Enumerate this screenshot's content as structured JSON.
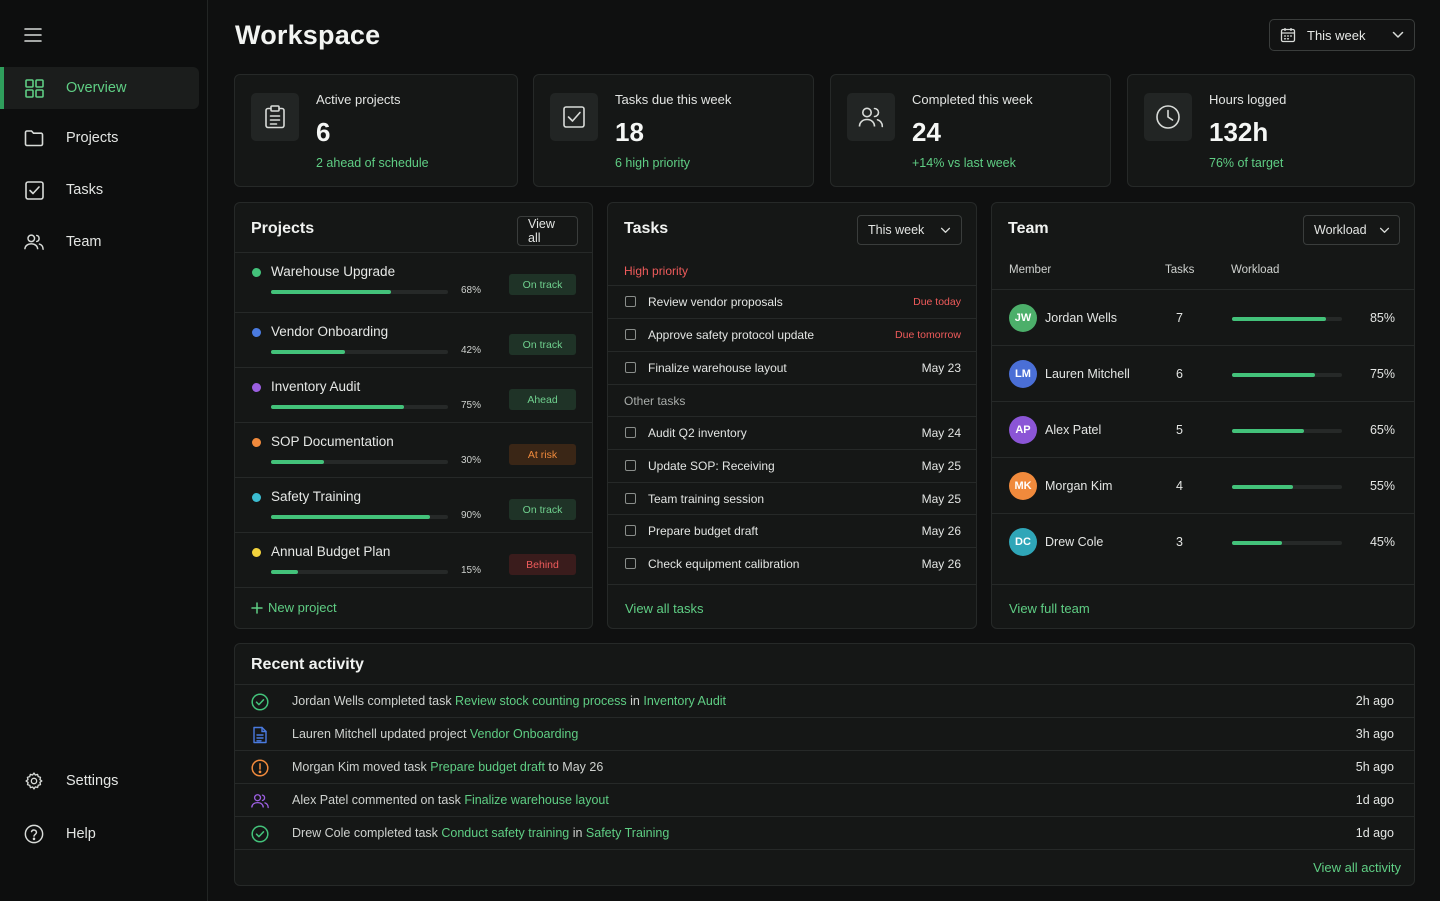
{
  "app": {
    "title": "Workspace"
  },
  "colors": {
    "accent": "#5fce84",
    "bar": "#43c27a",
    "danger": "#ef5b5b",
    "warning": "#f08a3c"
  },
  "sidebar": {
    "items": [
      {
        "label": "Overview",
        "icon": "grid-icon",
        "active": true
      },
      {
        "label": "Projects",
        "icon": "folder-icon"
      },
      {
        "label": "Tasks",
        "icon": "checkbox-icon"
      },
      {
        "label": "Team",
        "icon": "users-icon"
      }
    ],
    "bottom": [
      {
        "label": "Settings",
        "icon": "gear-icon"
      },
      {
        "label": "Help",
        "icon": "help-icon"
      }
    ]
  },
  "header": {
    "period": "This week"
  },
  "stats": [
    {
      "label": "Active projects",
      "value": "6",
      "sub": "2 ahead of schedule",
      "icon": "clipboard-icon"
    },
    {
      "label": "Tasks due this week",
      "value": "18",
      "sub": "6 high priority",
      "icon": "checkbox-icon"
    },
    {
      "label": "Completed this week",
      "value": "24",
      "sub": "+14% vs last week",
      "icon": "users-icon"
    },
    {
      "label": "Hours logged",
      "value": "132h",
      "sub": "76% of target",
      "icon": "clock-icon"
    }
  ],
  "projects": {
    "title": "Projects",
    "view_all": "View all",
    "new_project": "New project",
    "items": [
      {
        "name": "Warehouse Upgrade",
        "progress": 68,
        "pct": "68%",
        "status": "On track",
        "tone": "green",
        "dot": "#43c27a"
      },
      {
        "name": "Vendor Onboarding",
        "progress": 42,
        "pct": "42%",
        "status": "On track",
        "tone": "green",
        "dot": "#4a7be0"
      },
      {
        "name": "Inventory Audit",
        "progress": 75,
        "pct": "75%",
        "status": "Ahead",
        "tone": "green",
        "dot": "#9b5fe0"
      },
      {
        "name": "SOP Documentation",
        "progress": 30,
        "pct": "30%",
        "status": "At risk",
        "tone": "orange",
        "dot": "#f08a3c"
      },
      {
        "name": "Safety Training",
        "progress": 90,
        "pct": "90%",
        "status": "On track",
        "tone": "green",
        "dot": "#3bbcd0"
      },
      {
        "name": "Annual Budget Plan",
        "progress": 15,
        "pct": "15%",
        "status": "Behind",
        "tone": "red",
        "dot": "#f2d23c"
      }
    ]
  },
  "tasks": {
    "title": "Tasks",
    "period": "This week",
    "high_label": "High priority",
    "other_label": "Other tasks",
    "view_all": "View all tasks",
    "high": [
      {
        "name": "Review vendor proposals",
        "due": "Due today",
        "urgent": true
      },
      {
        "name": "Approve safety protocol update",
        "due": "Due tomorrow",
        "urgent": true
      },
      {
        "name": "Finalize warehouse layout",
        "due": "May 23"
      }
    ],
    "other": [
      {
        "name": "Audit Q2 inventory",
        "due": "May 24"
      },
      {
        "name": "Update SOP: Receiving",
        "due": "May 25"
      },
      {
        "name": "Team training session",
        "due": "May 25"
      },
      {
        "name": "Prepare budget draft",
        "due": "May 26"
      },
      {
        "name": "Check equipment calibration",
        "due": "May 26"
      }
    ]
  },
  "team": {
    "title": "Team",
    "mode": "Workload",
    "columns": {
      "member": "Member",
      "tasks": "Tasks",
      "workload": "Workload"
    },
    "view_all": "View full team",
    "members": [
      {
        "initials": "JW",
        "name": "Jordan Wells",
        "tasks": "7",
        "workload": 85,
        "pct": "85%",
        "color": "#4caf6a"
      },
      {
        "initials": "LM",
        "name": "Lauren Mitchell",
        "tasks": "6",
        "workload": 75,
        "pct": "75%",
        "color": "#4a6fd6"
      },
      {
        "initials": "AP",
        "name": "Alex Patel",
        "tasks": "5",
        "workload": 65,
        "pct": "65%",
        "color": "#8b55d6"
      },
      {
        "initials": "MK",
        "name": "Morgan Kim",
        "tasks": "4",
        "workload": 55,
        "pct": "55%",
        "color": "#f08a3c"
      },
      {
        "initials": "DC",
        "name": "Drew Cole",
        "tasks": "3",
        "workload": 45,
        "pct": "45%",
        "color": "#2fa6b8"
      }
    ]
  },
  "activity": {
    "title": "Recent activity",
    "view_all": "View all activity",
    "items": [
      {
        "icon": "check-circle-icon",
        "color": "#43c27a",
        "parts": [
          [
            "Jordan Wells completed task ",
            false
          ],
          [
            "Review stock counting process",
            true
          ],
          [
            " in ",
            false
          ],
          [
            "Inventory Audit",
            true
          ]
        ],
        "time": "2h ago"
      },
      {
        "icon": "document-icon",
        "color": "#4a7be0",
        "parts": [
          [
            "Lauren Mitchell updated project ",
            false
          ],
          [
            "Vendor Onboarding",
            true
          ]
        ],
        "time": "3h ago"
      },
      {
        "icon": "alert-circle-icon",
        "color": "#f08a3c",
        "parts": [
          [
            "Morgan Kim moved task ",
            false
          ],
          [
            "Prepare budget draft",
            true
          ],
          [
            " to ",
            false
          ],
          [
            "May 26",
            false
          ]
        ],
        "time": "5h ago"
      },
      {
        "icon": "users-icon",
        "color": "#9b5fe0",
        "parts": [
          [
            "Alex Patel commented on task ",
            false
          ],
          [
            "Finalize warehouse layout",
            true
          ]
        ],
        "time": "1d ago"
      },
      {
        "icon": "check-circle-icon",
        "color": "#43c27a",
        "parts": [
          [
            "Drew Cole completed task ",
            false
          ],
          [
            "Conduct safety training",
            true
          ],
          [
            " in ",
            false
          ],
          [
            "Safety Training",
            true
          ]
        ],
        "time": "1d ago"
      }
    ]
  }
}
